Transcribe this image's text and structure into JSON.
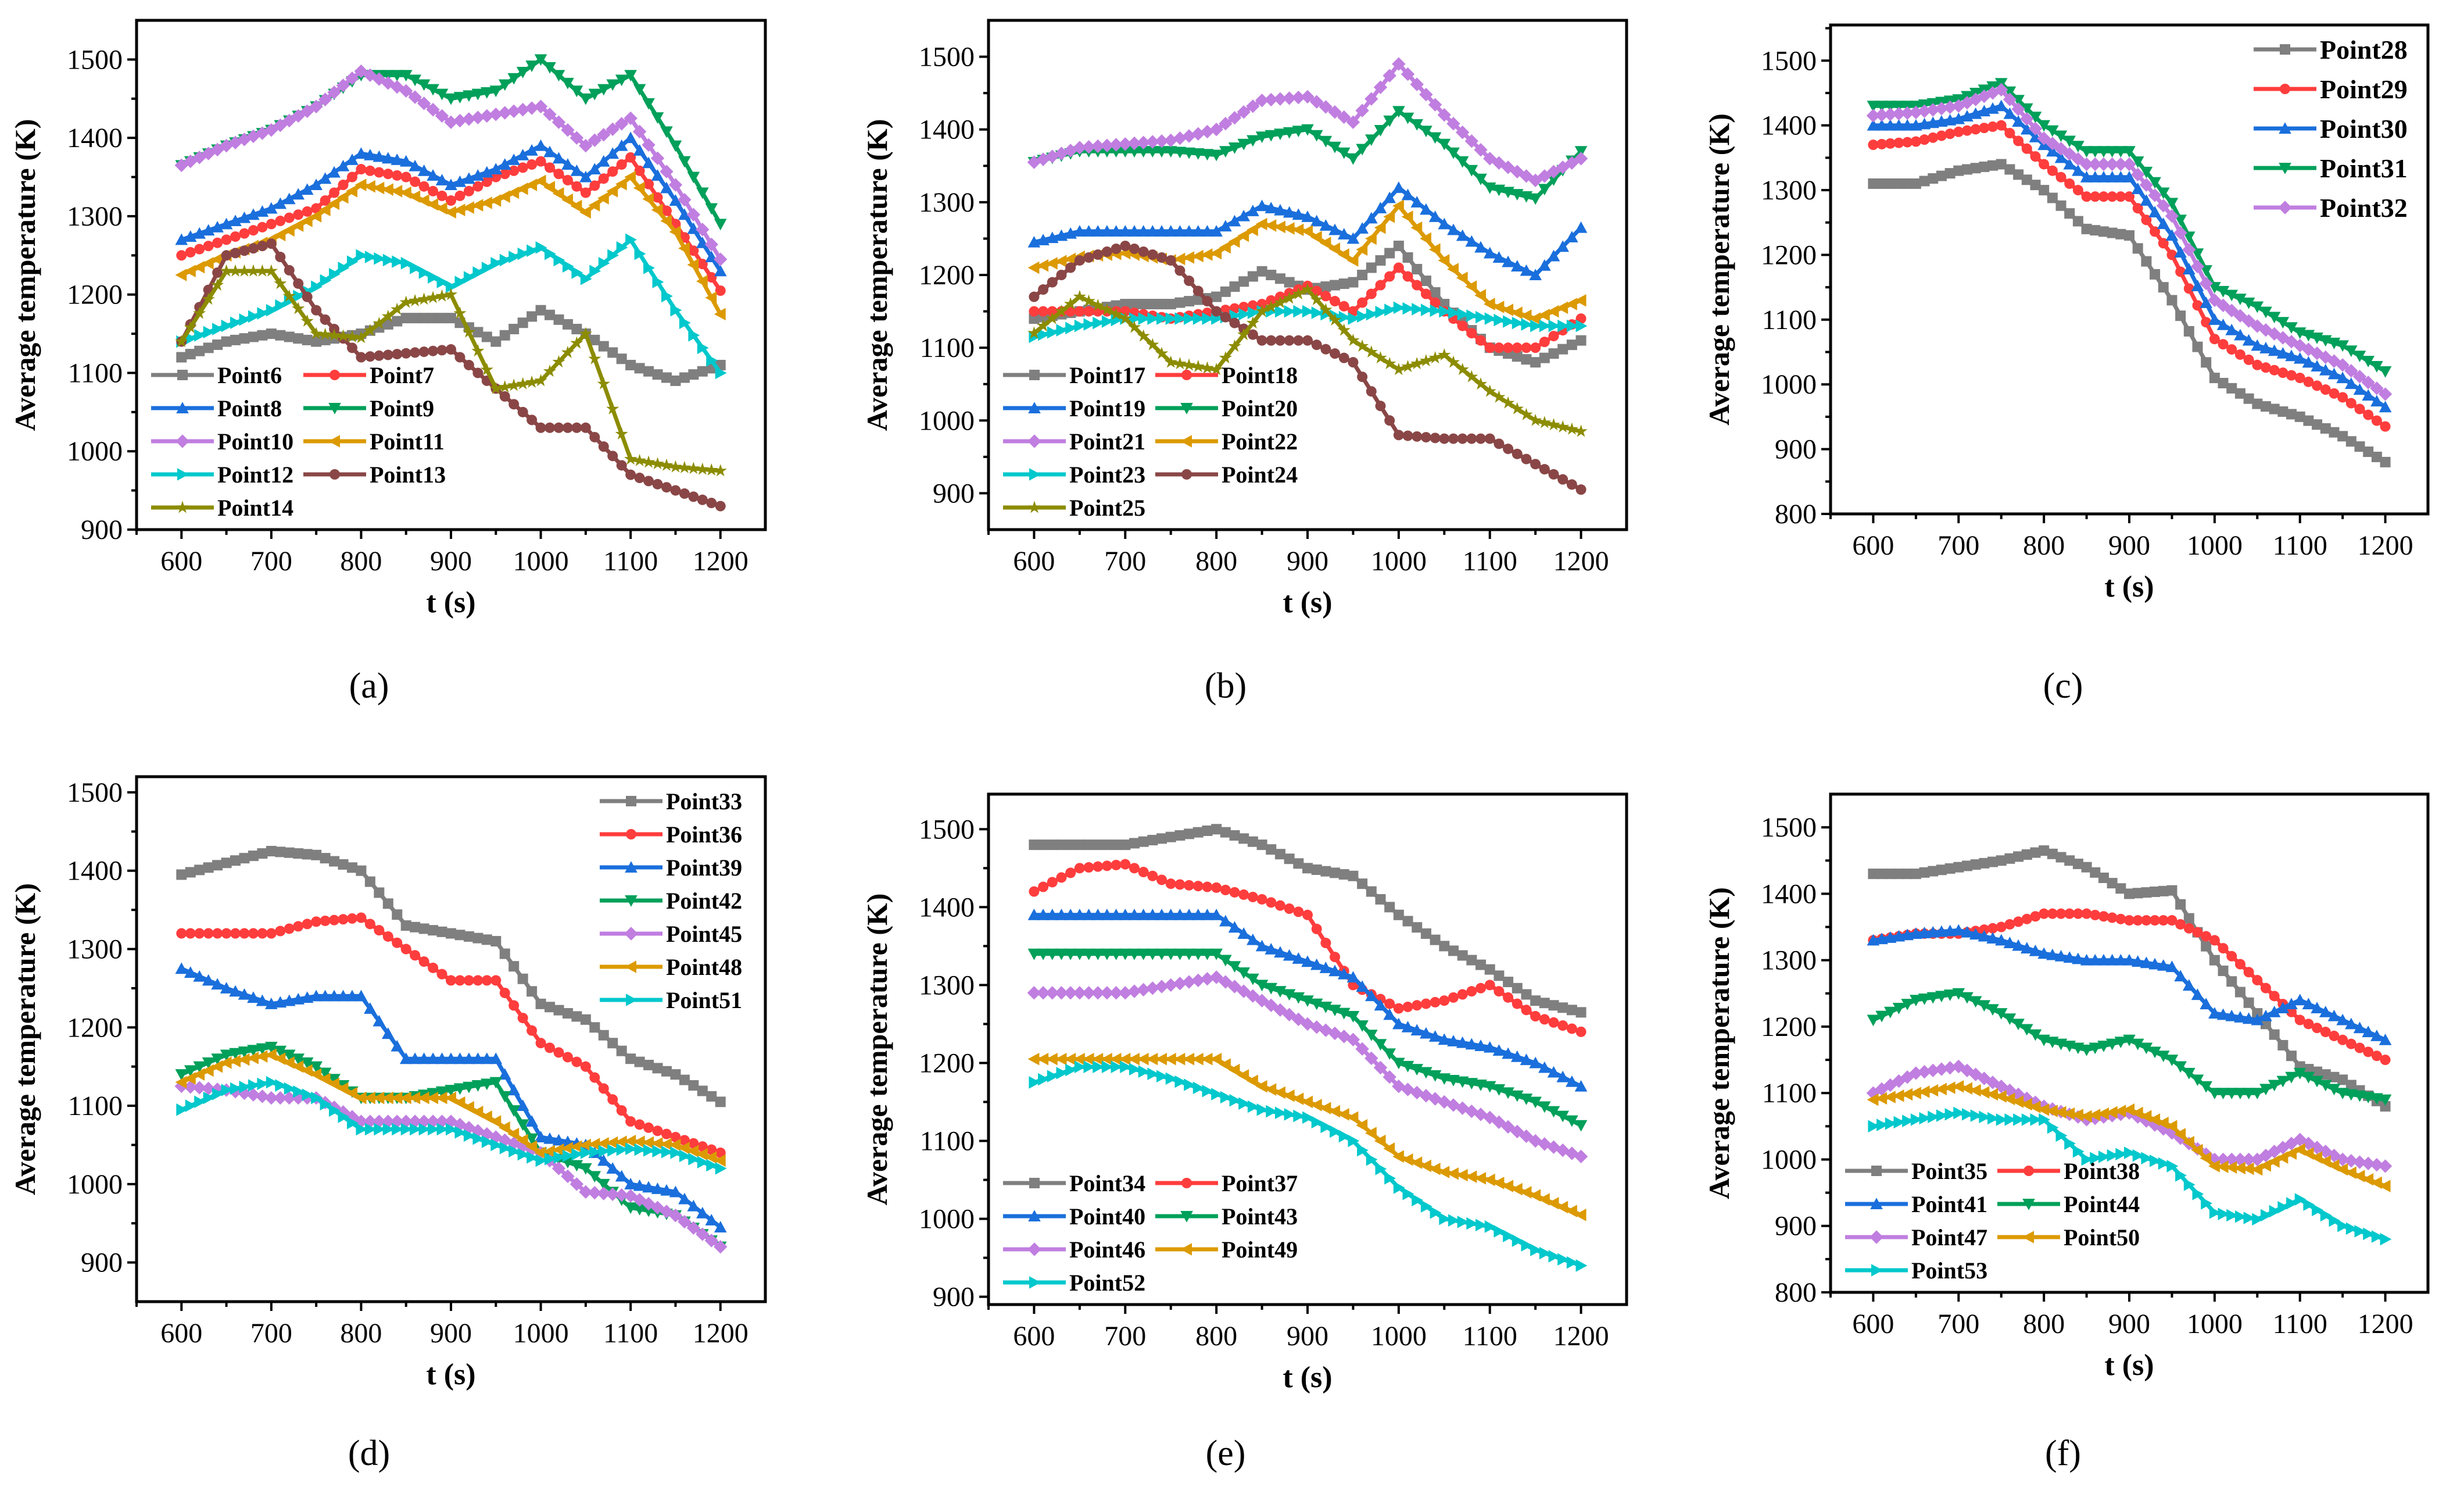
{
  "colors": [
    "#7f7f7f",
    "#ff3d3d",
    "#1a6fdc",
    "#00a05a",
    "#c07ee0",
    "#dc9a00",
    "#00c8cc",
    "#8a4646",
    "#8c8c00"
  ],
  "markers": [
    "square",
    "circle",
    "triangle-up",
    "triangle-down",
    "diamond",
    "triangle-left",
    "triangle-right",
    "circle",
    "star"
  ],
  "chart_data": [
    {
      "type": "line",
      "panel_label": "(a)",
      "xlabel": "t (s)",
      "ylabel": "Average temperature (K)",
      "xlim": [
        550,
        1250
      ],
      "ylim": [
        900,
        1550
      ],
      "xticks": [
        600,
        700,
        800,
        900,
        1000,
        1100,
        1200
      ],
      "yticks": [
        900,
        1000,
        1100,
        1200,
        1300,
        1400,
        1500
      ],
      "legend": "lower-left",
      "legend_columns": 2,
      "x": [
        600,
        650,
        700,
        750,
        800,
        850,
        900,
        950,
        1000,
        1050,
        1100,
        1150,
        1200
      ],
      "series": [
        {
          "name": "Point6",
          "values": [
            1120,
            1140,
            1150,
            1140,
            1150,
            1170,
            1170,
            1140,
            1180,
            1150,
            1110,
            1090,
            1110
          ]
        },
        {
          "name": "Point7",
          "values": [
            1250,
            1270,
            1290,
            1310,
            1360,
            1350,
            1320,
            1350,
            1370,
            1330,
            1375,
            1290,
            1205
          ]
        },
        {
          "name": "Point8",
          "values": [
            1270,
            1290,
            1310,
            1340,
            1380,
            1370,
            1340,
            1360,
            1390,
            1350,
            1400,
            1320,
            1230
          ]
        },
        {
          "name": "Point9",
          "values": [
            1365,
            1390,
            1410,
            1440,
            1480,
            1480,
            1450,
            1460,
            1500,
            1450,
            1480,
            1390,
            1290
          ]
        },
        {
          "name": "Point10",
          "values": [
            1365,
            1390,
            1410,
            1440,
            1485,
            1460,
            1420,
            1430,
            1440,
            1390,
            1425,
            1340,
            1245
          ]
        },
        {
          "name": "Point11",
          "values": [
            1225,
            1250,
            1270,
            1300,
            1340,
            1330,
            1305,
            1320,
            1345,
            1305,
            1350,
            1280,
            1175
          ]
        },
        {
          "name": "Point12",
          "values": [
            1140,
            1160,
            1180,
            1210,
            1250,
            1240,
            1210,
            1240,
            1260,
            1220,
            1270,
            1180,
            1100
          ]
        },
        {
          "name": "Point13",
          "values": [
            1140,
            1250,
            1265,
            1180,
            1120,
            1125,
            1130,
            1080,
            1030,
            1030,
            970,
            950,
            930
          ]
        },
        {
          "name": "Point14",
          "values": [
            1140,
            1230,
            1230,
            1150,
            1145,
            1190,
            1200,
            1080,
            1090,
            1150,
            990,
            980,
            975
          ]
        }
      ]
    },
    {
      "type": "line",
      "panel_label": "(b)",
      "xlabel": "t (s)",
      "ylabel": "Average temperature (K)",
      "xlim": [
        550,
        1250
      ],
      "ylim": [
        850,
        1550
      ],
      "xticks": [
        600,
        700,
        800,
        900,
        1000,
        1100,
        1200
      ],
      "yticks": [
        900,
        1000,
        1100,
        1200,
        1300,
        1400,
        1500
      ],
      "legend": "lower-left",
      "legend_columns": 2,
      "x": [
        600,
        650,
        700,
        750,
        800,
        850,
        900,
        950,
        1000,
        1050,
        1100,
        1150,
        1200
      ],
      "series": [
        {
          "name": "Point17",
          "values": [
            1140,
            1150,
            1160,
            1160,
            1170,
            1205,
            1180,
            1190,
            1240,
            1160,
            1100,
            1080,
            1110
          ]
        },
        {
          "name": "Point18",
          "values": [
            1150,
            1150,
            1150,
            1140,
            1150,
            1160,
            1185,
            1150,
            1210,
            1150,
            1100,
            1100,
            1140
          ]
        },
        {
          "name": "Point19",
          "values": [
            1245,
            1260,
            1260,
            1260,
            1260,
            1295,
            1280,
            1250,
            1320,
            1270,
            1230,
            1200,
            1265
          ]
        },
        {
          "name": "Point20",
          "values": [
            1355,
            1370,
            1370,
            1370,
            1365,
            1390,
            1400,
            1360,
            1425,
            1380,
            1320,
            1305,
            1370
          ]
        },
        {
          "name": "Point21",
          "values": [
            1355,
            1375,
            1380,
            1385,
            1400,
            1440,
            1445,
            1410,
            1490,
            1420,
            1360,
            1330,
            1360
          ]
        },
        {
          "name": "Point22",
          "values": [
            1210,
            1225,
            1230,
            1220,
            1230,
            1270,
            1260,
            1220,
            1295,
            1220,
            1160,
            1140,
            1165
          ]
        },
        {
          "name": "Point23",
          "values": [
            1115,
            1130,
            1140,
            1140,
            1140,
            1150,
            1150,
            1140,
            1155,
            1150,
            1140,
            1130,
            1130
          ]
        },
        {
          "name": "Point24",
          "values": [
            1170,
            1220,
            1240,
            1220,
            1150,
            1110,
            1110,
            1080,
            980,
            975,
            975,
            940,
            905
          ]
        },
        {
          "name": "Point25",
          "values": [
            1120,
            1170,
            1140,
            1080,
            1070,
            1150,
            1180,
            1110,
            1070,
            1090,
            1040,
            1000,
            985
          ]
        }
      ]
    },
    {
      "type": "line",
      "panel_label": "(c)",
      "xlabel": "t (s)",
      "ylabel": "Average temperature (K)",
      "xlim": [
        550,
        1250
      ],
      "ylim": [
        800,
        1555
      ],
      "xticks": [
        600,
        700,
        800,
        900,
        1000,
        1100,
        1200
      ],
      "yticks": [
        800,
        900,
        1000,
        1100,
        1200,
        1300,
        1400,
        1500
      ],
      "legend": "upper-right",
      "legend_columns": 1,
      "x": [
        600,
        650,
        700,
        750,
        800,
        850,
        900,
        950,
        1000,
        1050,
        1100,
        1150,
        1200
      ],
      "series": [
        {
          "name": "Point28",
          "values": [
            1310,
            1310,
            1330,
            1340,
            1300,
            1240,
            1230,
            1130,
            1010,
            970,
            950,
            920,
            880
          ]
        },
        {
          "name": "Point29",
          "values": [
            1370,
            1375,
            1390,
            1400,
            1340,
            1290,
            1290,
            1200,
            1070,
            1030,
            1010,
            980,
            935
          ]
        },
        {
          "name": "Point30",
          "values": [
            1400,
            1400,
            1410,
            1430,
            1370,
            1320,
            1320,
            1230,
            1100,
            1060,
            1040,
            1010,
            965
          ]
        },
        {
          "name": "Point31",
          "values": [
            1430,
            1430,
            1440,
            1465,
            1400,
            1360,
            1360,
            1280,
            1150,
            1120,
            1080,
            1060,
            1020
          ]
        },
        {
          "name": "Point32",
          "values": [
            1415,
            1420,
            1430,
            1455,
            1380,
            1340,
            1340,
            1260,
            1130,
            1090,
            1060,
            1030,
            985
          ]
        }
      ]
    },
    {
      "type": "line",
      "panel_label": "(d)",
      "xlabel": "t (s)",
      "ylabel": "Average temperature (K)",
      "xlim": [
        550,
        1250
      ],
      "ylim": [
        850,
        1520
      ],
      "xticks": [
        600,
        700,
        800,
        900,
        1000,
        1100,
        1200
      ],
      "yticks": [
        900,
        1000,
        1100,
        1200,
        1300,
        1400,
        1500
      ],
      "legend": "upper-right",
      "legend_columns": 1,
      "x": [
        600,
        650,
        700,
        750,
        800,
        850,
        900,
        950,
        1000,
        1050,
        1100,
        1150,
        1200
      ],
      "series": [
        {
          "name": "Point33",
          "values": [
            1395,
            1410,
            1425,
            1420,
            1400,
            1330,
            1320,
            1310,
            1230,
            1210,
            1160,
            1140,
            1105
          ]
        },
        {
          "name": "Point36",
          "values": [
            1320,
            1320,
            1320,
            1335,
            1340,
            1300,
            1260,
            1260,
            1180,
            1150,
            1080,
            1060,
            1040
          ]
        },
        {
          "name": "Point39",
          "values": [
            1275,
            1250,
            1230,
            1240,
            1240,
            1160,
            1160,
            1160,
            1060,
            1050,
            1000,
            990,
            945
          ]
        },
        {
          "name": "Point42",
          "values": [
            1140,
            1165,
            1175,
            1150,
            1110,
            1110,
            1120,
            1130,
            1040,
            1020,
            970,
            960,
            920
          ]
        },
        {
          "name": "Point45",
          "values": [
            1125,
            1120,
            1110,
            1110,
            1080,
            1080,
            1080,
            1060,
            1040,
            990,
            985,
            960,
            920
          ]
        },
        {
          "name": "Point48",
          "values": [
            1130,
            1155,
            1165,
            1140,
            1110,
            1110,
            1110,
            1080,
            1040,
            1050,
            1055,
            1050,
            1030
          ]
        },
        {
          "name": "Point51",
          "values": [
            1095,
            1120,
            1130,
            1110,
            1070,
            1070,
            1070,
            1050,
            1030,
            1040,
            1045,
            1040,
            1020
          ]
        }
      ]
    },
    {
      "type": "line",
      "panel_label": "(e)",
      "xlabel": "t (s)",
      "ylabel": "Average temperature (K)",
      "xlim": [
        550,
        1250
      ],
      "ylim": [
        890,
        1545
      ],
      "xticks": [
        600,
        700,
        800,
        900,
        1000,
        1100,
        1200
      ],
      "yticks": [
        900,
        1000,
        1100,
        1200,
        1300,
        1400,
        1500
      ],
      "legend": "lower-left",
      "legend_columns": 2,
      "x": [
        600,
        650,
        700,
        750,
        800,
        850,
        900,
        950,
        1000,
        1050,
        1100,
        1150,
        1200
      ],
      "series": [
        {
          "name": "Point34",
          "values": [
            1480,
            1480,
            1480,
            1490,
            1500,
            1480,
            1450,
            1440,
            1390,
            1350,
            1320,
            1280,
            1265
          ]
        },
        {
          "name": "Point37",
          "values": [
            1420,
            1450,
            1455,
            1430,
            1425,
            1410,
            1390,
            1300,
            1270,
            1280,
            1300,
            1260,
            1240
          ]
        },
        {
          "name": "Point40",
          "values": [
            1390,
            1390,
            1390,
            1390,
            1390,
            1350,
            1330,
            1310,
            1250,
            1230,
            1220,
            1200,
            1170
          ]
        },
        {
          "name": "Point43",
          "values": [
            1340,
            1340,
            1340,
            1340,
            1340,
            1300,
            1280,
            1260,
            1200,
            1180,
            1170,
            1150,
            1120
          ]
        },
        {
          "name": "Point46",
          "values": [
            1290,
            1290,
            1290,
            1300,
            1310,
            1280,
            1250,
            1230,
            1170,
            1150,
            1130,
            1100,
            1080
          ]
        },
        {
          "name": "Point49",
          "values": [
            1205,
            1205,
            1205,
            1205,
            1205,
            1170,
            1150,
            1130,
            1080,
            1060,
            1050,
            1030,
            1005
          ]
        },
        {
          "name": "Point52",
          "values": [
            1175,
            1195,
            1195,
            1180,
            1160,
            1140,
            1130,
            1100,
            1040,
            1000,
            990,
            960,
            940
          ]
        }
      ]
    },
    {
      "type": "line",
      "panel_label": "(f)",
      "xlabel": "t (s)",
      "ylabel": "Average temperature (K)",
      "xlim": [
        550,
        1250
      ],
      "ylim": [
        800,
        1550
      ],
      "xticks": [
        600,
        700,
        800,
        900,
        1000,
        1100,
        1200
      ],
      "yticks": [
        800,
        900,
        1000,
        1100,
        1200,
        1300,
        1400,
        1500
      ],
      "legend": "lower-left",
      "legend_columns": 2,
      "x": [
        600,
        650,
        700,
        750,
        800,
        850,
        900,
        950,
        1000,
        1050,
        1100,
        1150,
        1200
      ],
      "series": [
        {
          "name": "Point35",
          "values": [
            1430,
            1430,
            1440,
            1450,
            1465,
            1440,
            1400,
            1405,
            1300,
            1220,
            1140,
            1120,
            1080
          ]
        },
        {
          "name": "Point38",
          "values": [
            1330,
            1340,
            1340,
            1350,
            1370,
            1370,
            1360,
            1360,
            1330,
            1270,
            1210,
            1180,
            1150
          ]
        },
        {
          "name": "Point41",
          "values": [
            1330,
            1340,
            1345,
            1330,
            1310,
            1300,
            1300,
            1290,
            1220,
            1210,
            1240,
            1210,
            1180
          ]
        },
        {
          "name": "Point44",
          "values": [
            1210,
            1240,
            1250,
            1220,
            1180,
            1165,
            1180,
            1150,
            1100,
            1100,
            1130,
            1100,
            1090
          ]
        },
        {
          "name": "Point47",
          "values": [
            1100,
            1130,
            1140,
            1110,
            1080,
            1060,
            1070,
            1040,
            1000,
            1000,
            1030,
            1000,
            990
          ]
        },
        {
          "name": "Point50",
          "values": [
            1090,
            1100,
            1110,
            1095,
            1075,
            1065,
            1075,
            1050,
            990,
            985,
            1015,
            985,
            960
          ]
        },
        {
          "name": "Point53",
          "values": [
            1050,
            1060,
            1070,
            1060,
            1060,
            1000,
            1010,
            990,
            920,
            910,
            940,
            900,
            880
          ]
        }
      ]
    }
  ]
}
